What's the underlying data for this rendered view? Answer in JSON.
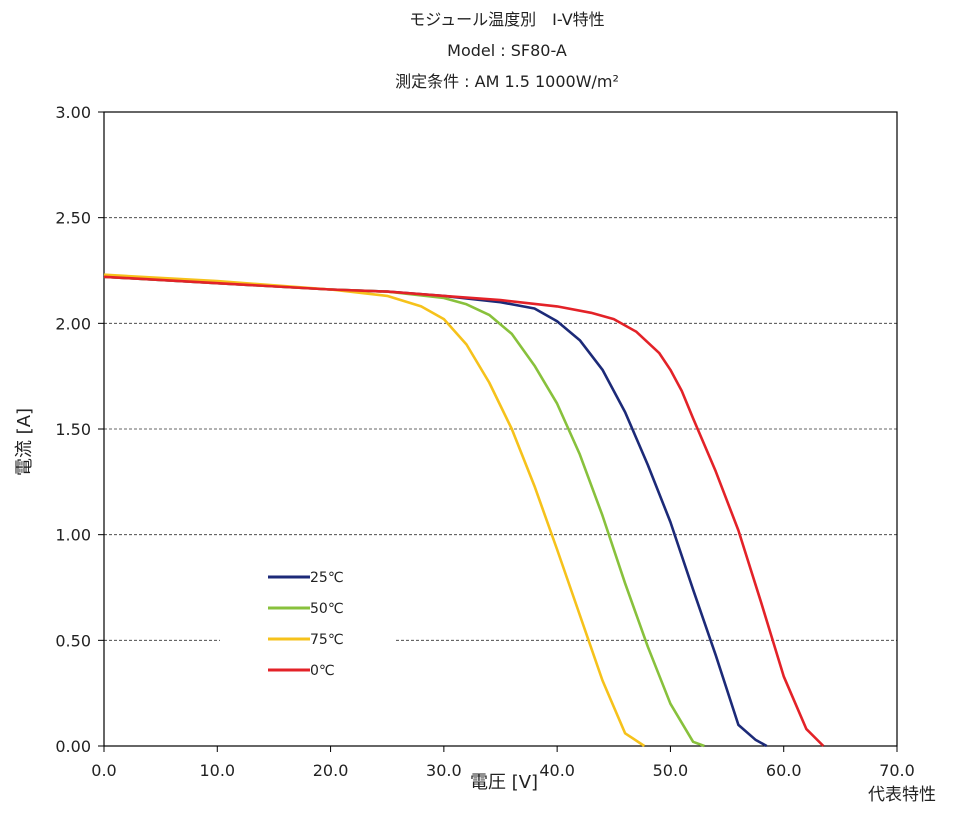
{
  "chart_data": {
    "type": "line",
    "title_lines": [
      "モジュール温度別　I-V特性",
      "Model : SF80-A",
      "測定条件 : AM 1.5  1000W/m²"
    ],
    "xlabel": "電圧 [V]",
    "ylabel": "電流 [A]",
    "xlim": [
      0,
      70
    ],
    "ylim": [
      0,
      3
    ],
    "x_ticks": [
      "0.0",
      "10.0",
      "20.0",
      "30.0",
      "40.0",
      "50.0",
      "60.0",
      "70.0"
    ],
    "y_ticks": [
      "0.00",
      "0.50",
      "1.00",
      "1.50",
      "2.00",
      "2.50",
      "3.00"
    ],
    "grid": "horizontal-dashed",
    "legend_position": "lower-left",
    "series": [
      {
        "name": "25℃",
        "color": "#1c2a78",
        "x": [
          0,
          10,
          20,
          25,
          30,
          35,
          38,
          40,
          42,
          44,
          46,
          48,
          50,
          52,
          54,
          56,
          57.5,
          58.5
        ],
        "y": [
          2.22,
          2.19,
          2.16,
          2.15,
          2.13,
          2.1,
          2.07,
          2.01,
          1.92,
          1.78,
          1.58,
          1.33,
          1.06,
          0.74,
          0.43,
          0.1,
          0.03,
          0.0
        ]
      },
      {
        "name": "50℃",
        "color": "#88c13c",
        "x": [
          0,
          10,
          20,
          25,
          30,
          32,
          34,
          36,
          38,
          40,
          42,
          44,
          46,
          48,
          50,
          52,
          53
        ],
        "y": [
          2.22,
          2.19,
          2.16,
          2.15,
          2.12,
          2.09,
          2.04,
          1.95,
          1.8,
          1.62,
          1.38,
          1.09,
          0.77,
          0.47,
          0.2,
          0.02,
          0.0
        ]
      },
      {
        "name": "75℃",
        "color": "#f6c21b",
        "x": [
          0,
          10,
          20,
          25,
          28,
          30,
          32,
          34,
          36,
          38,
          40,
          42,
          44,
          46,
          47.7
        ],
        "y": [
          2.23,
          2.2,
          2.16,
          2.13,
          2.08,
          2.02,
          1.9,
          1.72,
          1.5,
          1.23,
          0.93,
          0.62,
          0.31,
          0.06,
          0.0
        ]
      },
      {
        "name": "0℃",
        "color": "#e32228",
        "x": [
          0,
          10,
          20,
          25,
          30,
          35,
          40,
          43,
          45,
          47,
          49,
          50,
          51,
          52,
          54,
          56,
          58,
          60,
          62,
          63.5
        ],
        "y": [
          2.22,
          2.19,
          2.16,
          2.15,
          2.13,
          2.11,
          2.08,
          2.05,
          2.02,
          1.96,
          1.86,
          1.78,
          1.68,
          1.55,
          1.3,
          1.02,
          0.68,
          0.33,
          0.08,
          0.0
        ]
      }
    ]
  },
  "footnote": "代表特性"
}
